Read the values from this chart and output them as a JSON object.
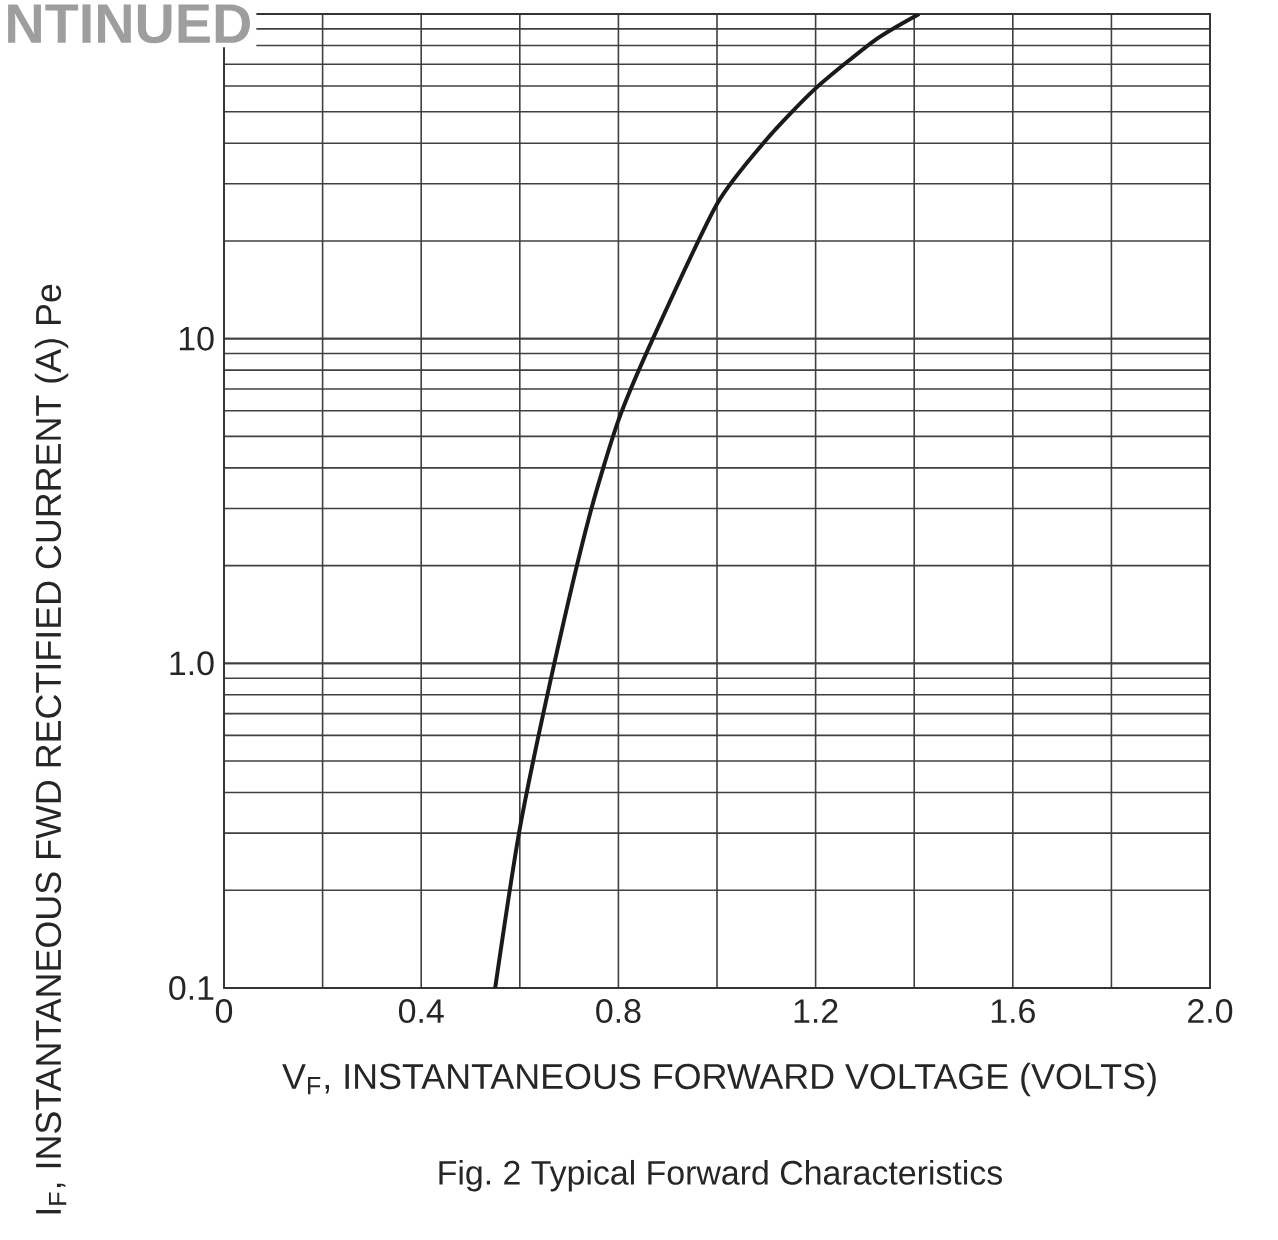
{
  "chart_data": {
    "type": "line",
    "title": "Fig. 2 Typical Forward Characteristics",
    "xlabel": "V$_{F}$, INSTANTANEOUS FORWARD VOLTAGE (VOLTS)",
    "ylabel": "I$_{F}$, INSTANTANEOUS FWD RECTIFIED CURRENT (A) Pe",
    "annotations": [
      "NTINUED"
    ],
    "x": [
      0.55,
      0.6,
      0.67,
      0.74,
      0.8,
      0.87,
      1.0,
      1.1,
      1.2,
      1.32,
      1.41
    ],
    "series": [
      {
        "color": "#1a1a1a",
        "values": [
          0.1,
          0.31,
          1.0,
          2.8,
          5.6,
          10,
          26,
          41,
          59,
          83,
          100
        ]
      }
    ],
    "xlim": [
      0,
      2
    ],
    "ylim": [
      0.1,
      100
    ],
    "log": true,
    "grid": true,
    "xticks": [
      0,
      {
        "value": 0.2,
        "label": null
      },
      0.4,
      {
        "value": 0.6,
        "label": null
      },
      0.8,
      {
        "value": 1.0,
        "label": null
      },
      1.2,
      {
        "value": 1.4,
        "label": null
      },
      1.6,
      {
        "value": 1.8,
        "label": null
      },
      {
        "value": 2,
        "label": "2.0"
      }
    ],
    "yticks": [
      {
        "value": 0.1,
        "label": "0.1"
      },
      {
        "value": 1,
        "label": "1.0"
      },
      10,
      {
        "value": 100,
        "label": null
      }
    ]
  }
}
